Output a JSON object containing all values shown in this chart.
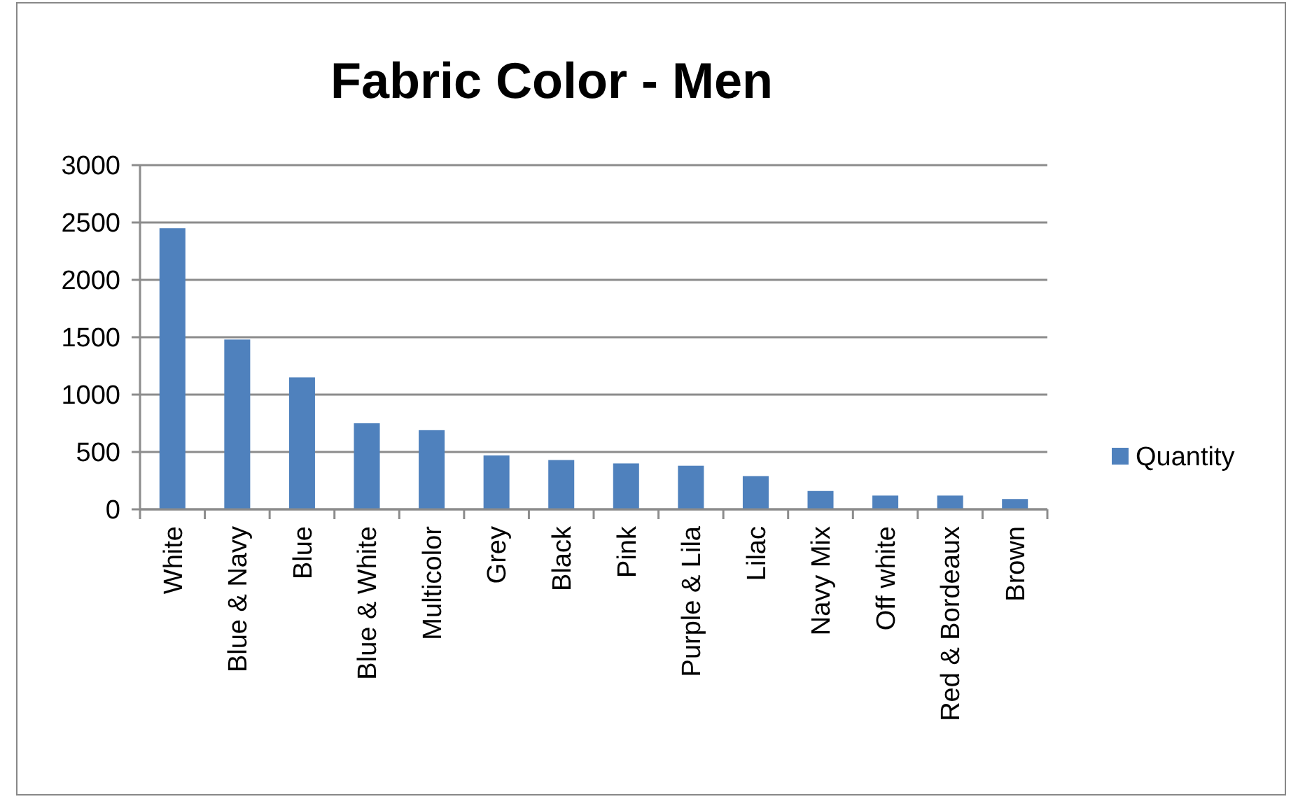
{
  "chart_data": {
    "type": "bar",
    "title": "Fabric Color - Men",
    "categories": [
      "White",
      "Blue & Navy",
      "Blue",
      "Blue & White",
      "Multicolor",
      "Grey",
      "Black",
      "Pink",
      "Purple & Lila",
      "Lilac",
      "Navy Mix",
      "Off white",
      "Red & Bordeaux",
      "Brown"
    ],
    "series": [
      {
        "name": "Quantity",
        "color": "#4f81bd",
        "values": [
          2450,
          1480,
          1150,
          750,
          690,
          470,
          430,
          400,
          380,
          290,
          160,
          120,
          120,
          90
        ]
      }
    ],
    "ylim": [
      0,
      3000
    ],
    "yticks": [
      0,
      500,
      1000,
      1500,
      2000,
      2500,
      3000
    ],
    "grid": "y",
    "legend": "right"
  }
}
